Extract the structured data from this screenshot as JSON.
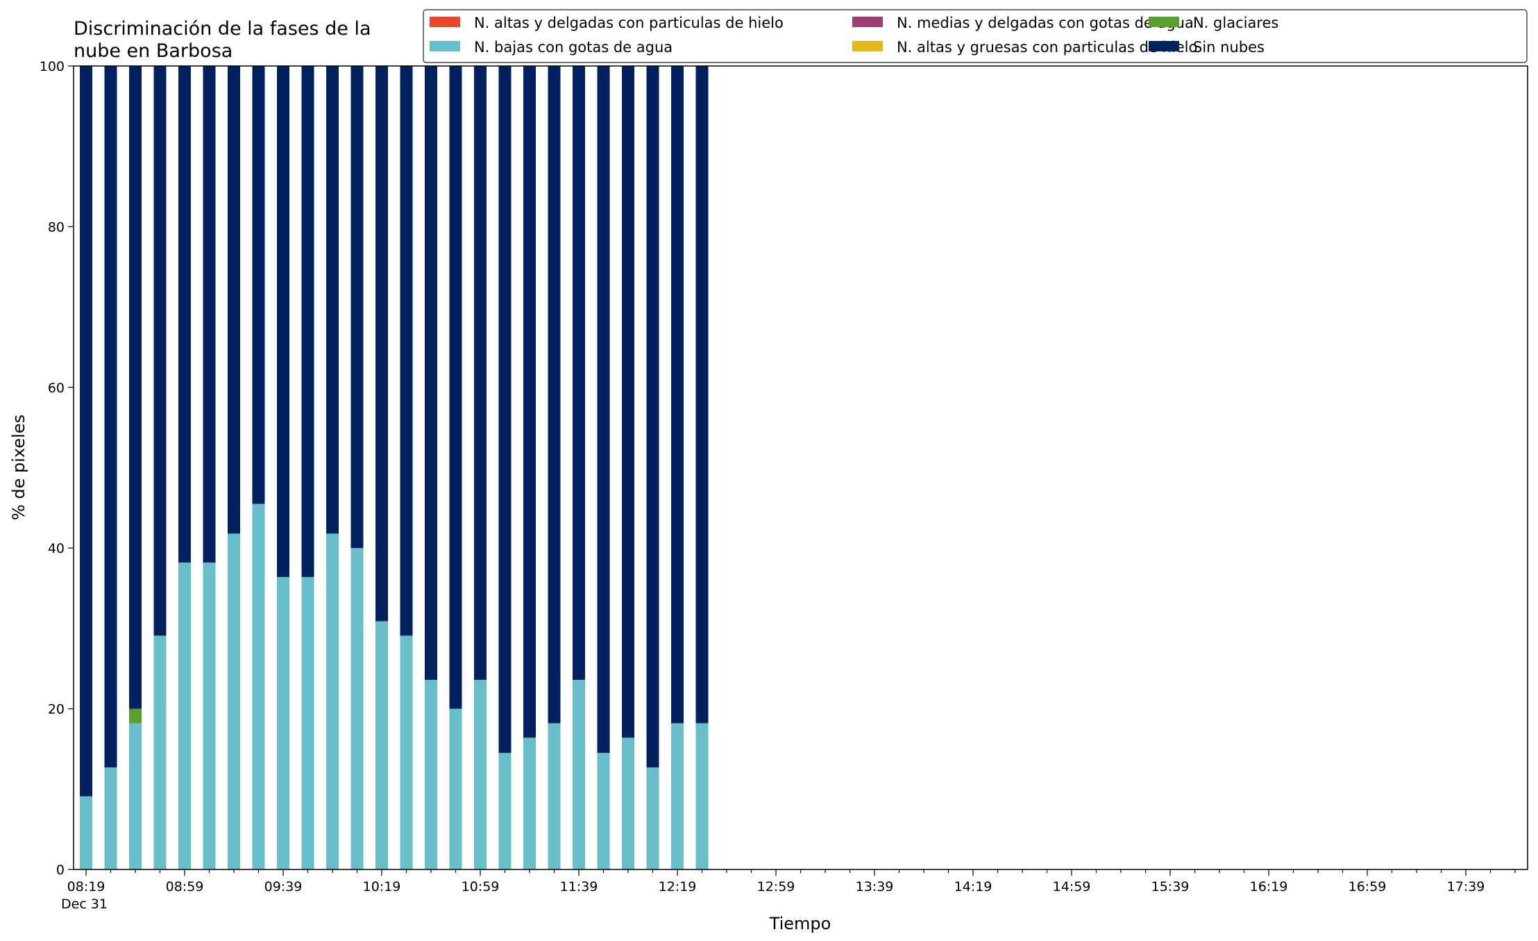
{
  "chart_data": {
    "type": "bar",
    "stacked": true,
    "title_lines": [
      "Discriminación de la fases de la",
      "nube en Barbosa"
    ],
    "xlabel": "Tiempo",
    "ylabel": "% de pixeles",
    "ylim": [
      0,
      100
    ],
    "yticks": [
      0,
      20,
      40,
      60,
      80,
      100
    ],
    "x_tick_labels": [
      "08:19",
      "08:59",
      "09:39",
      "10:19",
      "10:59",
      "11:39",
      "12:19",
      "12:59",
      "13:39",
      "14:19",
      "14:59",
      "15:39",
      "16:19",
      "16:59",
      "17:39"
    ],
    "x_date_label": "Dec 31",
    "x_minor_slots": 59,
    "categories": [
      "08:19",
      "08:29",
      "08:39",
      "08:49",
      "08:59",
      "09:09",
      "09:19",
      "09:29",
      "09:39",
      "09:49",
      "09:59",
      "10:09",
      "10:19",
      "10:29",
      "10:39",
      "10:49",
      "10:59",
      "11:09",
      "11:19",
      "11:29",
      "11:39",
      "11:49",
      "11:59",
      "12:09",
      "12:19",
      "12:29"
    ],
    "series": [
      {
        "name": "N. altas y delgadas con particulas de hielo",
        "color": "#e8472c",
        "values": [
          0,
          0,
          0,
          0,
          0,
          0,
          0,
          0,
          0,
          0,
          0,
          0,
          0,
          0,
          0,
          0,
          0,
          0,
          0,
          0,
          0,
          0,
          0,
          0,
          0,
          0
        ]
      },
      {
        "name": "N. altas y gruesas con particulas de hielo",
        "color": "#e5b81c",
        "values": [
          0,
          0,
          0,
          0,
          0,
          0,
          0,
          0,
          0,
          0,
          0,
          0,
          0,
          0,
          0,
          0,
          0,
          0,
          0,
          0,
          0,
          0,
          0,
          0,
          0,
          0
        ]
      },
      {
        "name": "N. bajas con gotas de agua",
        "color": "#68bfca",
        "values": [
          9.1,
          12.7,
          18.2,
          29.1,
          38.2,
          38.2,
          41.8,
          45.5,
          36.4,
          36.4,
          41.8,
          40.0,
          30.9,
          29.1,
          23.6,
          20.0,
          23.6,
          14.5,
          16.4,
          18.2,
          23.6,
          14.5,
          16.4,
          12.7,
          18.2,
          18.2
        ]
      },
      {
        "name": "N. glaciares",
        "color": "#5a9e2f",
        "values": [
          0,
          0,
          1.8,
          0,
          0,
          0,
          0,
          0,
          0,
          0,
          0,
          0,
          0,
          0,
          0,
          0,
          0,
          0,
          0,
          0,
          0,
          0,
          0,
          0,
          0,
          0
        ]
      },
      {
        "name": "N. medias y delgadas con gotas de agua",
        "color": "#9e3f73",
        "values": [
          0,
          0,
          0,
          0,
          0,
          0,
          0,
          0,
          0,
          0,
          0,
          0,
          0,
          0,
          0,
          0,
          0,
          0,
          0,
          0,
          0,
          0,
          0,
          0,
          0,
          0
        ]
      },
      {
        "name": "Sin nubes",
        "color": "#03215e",
        "values": [
          90.9,
          87.3,
          80.0,
          70.9,
          61.8,
          61.8,
          58.2,
          54.5,
          63.6,
          63.6,
          58.2,
          60.0,
          69.1,
          70.9,
          76.4,
          80.0,
          76.4,
          85.5,
          83.6,
          81.8,
          76.4,
          85.5,
          83.6,
          87.3,
          81.8,
          81.8
        ]
      }
    ],
    "legend_order": [
      0,
      2,
      4,
      1,
      3,
      5
    ],
    "legend_placement": "top-right"
  }
}
